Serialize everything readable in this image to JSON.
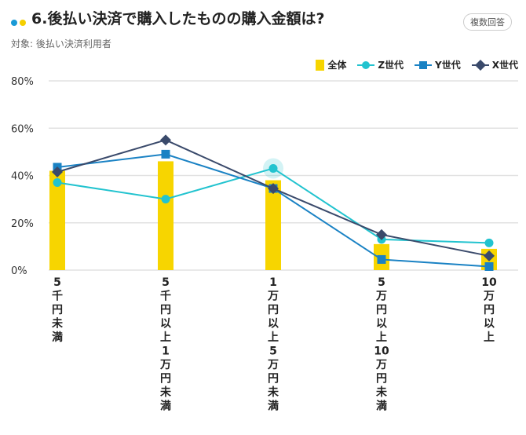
{
  "header": {
    "title": "6.後払い決済で購入したものの購入金額は?",
    "badge": "複数回答",
    "subtitle": "対象: 後払い決済利用者",
    "dot_colors": [
      "#1a9ad6",
      "#f5cf00"
    ]
  },
  "chart_data": {
    "type": "bar",
    "title": "6.後払い決済で購入したものの購入金額は?",
    "categories": [
      "5千円未満",
      "5千円以上1万円未満",
      "1万円以上5万円未満",
      "5万円以上10万円未満",
      "10万円以上"
    ],
    "ylim": [
      0,
      80
    ],
    "yticks": [
      0,
      20,
      40,
      60,
      80
    ],
    "ytick_labels": [
      "0%",
      "20%",
      "40%",
      "60%",
      "80%"
    ],
    "grid": true,
    "legend_position": "top-right",
    "series": [
      {
        "name": "全体",
        "type": "bar",
        "color": "#f7d500",
        "values": [
          42,
          46,
          38,
          11,
          9
        ]
      },
      {
        "name": "Z世代",
        "type": "line",
        "marker": "circle",
        "color": "#22c3cf",
        "values": [
          37,
          30,
          43,
          13,
          11.5
        ]
      },
      {
        "name": "Y世代",
        "type": "line",
        "marker": "square",
        "color": "#1a82c4",
        "values": [
          43.5,
          49,
          34.5,
          4.5,
          1.5
        ]
      },
      {
        "name": "X世代",
        "type": "line",
        "marker": "diamond",
        "color": "#3a4a6b",
        "values": [
          41.5,
          55,
          34.5,
          15,
          6
        ]
      }
    ]
  }
}
